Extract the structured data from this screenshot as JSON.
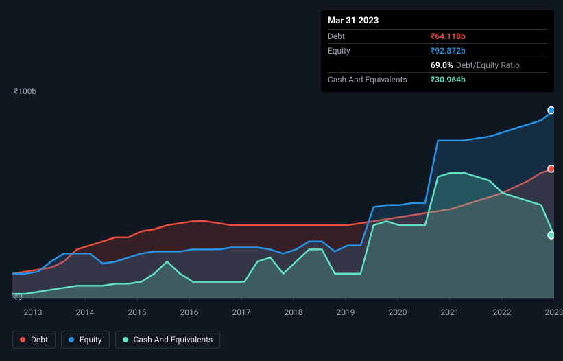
{
  "chart": {
    "type": "line-area-multi",
    "background_color": "#111720",
    "plot_top_bg": "#111720",
    "grid_color": "#2e3540",
    "ylim": [
      0,
      100
    ],
    "y_max_label": "₹100b",
    "y_min_label": "₹0",
    "x_years": [
      "2013",
      "2014",
      "2015",
      "2016",
      "2017",
      "2018",
      "2019",
      "2020",
      "2021",
      "2022",
      "2023"
    ],
    "series": {
      "debt": {
        "label": "Debt",
        "color": "#e74c3c",
        "fill_opacity": 0.18,
        "line_width": 2.5,
        "values": [
          12,
          13,
          14,
          15,
          18,
          24,
          26,
          28,
          30,
          30,
          33,
          34,
          36,
          37,
          38,
          38,
          37,
          36,
          36,
          36,
          36,
          36,
          36,
          36,
          36,
          36,
          36,
          37,
          38,
          39,
          40,
          41,
          42,
          43,
          44,
          46,
          48,
          50,
          52,
          55,
          58,
          62,
          64
        ]
      },
      "equity": {
        "label": "Equity",
        "color": "#2793e6",
        "fill_opacity": 0.18,
        "line_width": 2.5,
        "values": [
          12,
          12,
          13,
          18,
          22,
          22,
          22,
          17,
          18,
          20,
          22,
          23,
          23,
          23,
          24,
          24,
          24,
          25,
          25,
          25,
          24,
          22,
          24,
          28,
          28,
          23,
          26,
          26,
          45,
          46,
          46,
          47,
          47,
          78,
          78,
          78,
          79,
          80,
          82,
          84,
          86,
          88,
          93
        ]
      },
      "cash": {
        "label": "Cash And Equivalents",
        "color": "#5ee2c0",
        "fill_opacity": 0.22,
        "line_width": 2.5,
        "values": [
          2,
          2,
          3,
          4,
          5,
          6,
          6,
          6,
          7,
          7,
          8,
          12,
          18,
          12,
          8,
          8,
          8,
          8,
          8,
          18,
          20,
          12,
          18,
          24,
          24,
          12,
          12,
          12,
          36,
          38,
          36,
          36,
          36,
          60,
          62,
          62,
          60,
          58,
          52,
          50,
          48,
          46,
          31
        ]
      }
    },
    "end_markers": {
      "debt": 64,
      "equity": 93,
      "cash": 31
    }
  },
  "tooltip": {
    "title": "Mar 31 2023",
    "rows": [
      {
        "label": "Debt",
        "value": "₹64.118b",
        "color": "#e74c3c"
      },
      {
        "label": "Equity",
        "value": "₹92.872b",
        "color": "#2793e6"
      },
      {
        "label": "",
        "value": "69.0%",
        "suffix": "Debt/Equity Ratio",
        "color": "#ffffff"
      },
      {
        "label": "Cash And Equivalents",
        "value": "₹30.964b",
        "color": "#5ee2c0"
      }
    ]
  },
  "legend": [
    {
      "label": "Debt",
      "color": "#e74c3c"
    },
    {
      "label": "Equity",
      "color": "#2793e6"
    },
    {
      "label": "Cash And Equivalents",
      "color": "#5ee2c0"
    }
  ]
}
